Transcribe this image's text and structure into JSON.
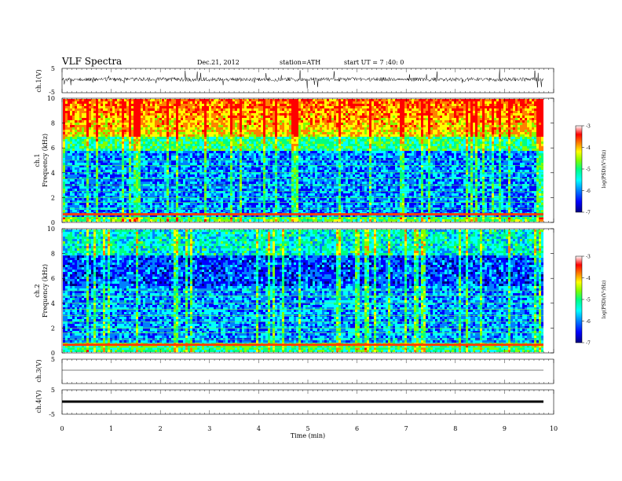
{
  "header": {
    "title": "VLF  Spectra",
    "date": "Dec.21, 2012",
    "station": "station=ATH",
    "start": "start  UT  =   7  :40: 0"
  },
  "colors": {
    "spectrum_scale": [
      "#000080",
      "#0000ff",
      "#0080ff",
      "#00ffff",
      "#00ff80",
      "#80ff00",
      "#ffff00",
      "#ff8000",
      "#ff0000",
      "#ffffff"
    ]
  },
  "chart_data": [
    {
      "type": "line",
      "panel": "ch1-waveform",
      "ylabel": "ch.1(V)",
      "ylim": [
        -5,
        5
      ],
      "yticks": [
        "5",
        "-5"
      ],
      "xlim": [
        0,
        10
      ],
      "series": [
        {
          "x": [
            0,
            9.8
          ],
          "y": [
            0,
            0
          ]
        }
      ]
    },
    {
      "type": "heatmap",
      "panel": "ch1-spectrogram",
      "ylabel": "ch.1\nFrequency (kHz)",
      "ylim": [
        0,
        10
      ],
      "yticks": [
        "0",
        "2",
        "4",
        "6",
        "8",
        "10"
      ],
      "xlim": [
        0,
        10
      ],
      "colorbar": {
        "label": "log(PSD)(V²/Hz)",
        "range": [
          -7,
          -3
        ],
        "ticks": [
          "-3",
          "-4",
          "-5",
          "-6",
          "-7"
        ]
      }
    },
    {
      "type": "heatmap",
      "panel": "ch2-spectrogram",
      "ylabel": "ch.2\nFrequency (kHz)",
      "ylim": [
        0,
        10
      ],
      "yticks": [
        "0",
        "2",
        "4",
        "6",
        "8",
        "10"
      ],
      "xlim": [
        0,
        10
      ],
      "colorbar": {
        "label": "log(PSD)(V²/Hz)",
        "range": [
          -7,
          -3
        ],
        "ticks": [
          "-3",
          "-4",
          "-5",
          "-6",
          "-7"
        ]
      }
    },
    {
      "type": "line",
      "panel": "ch3-waveform",
      "ylabel": "ch.3(V)",
      "ylim": [
        -5,
        5
      ],
      "yticks": [
        "5"
      ],
      "xlim": [
        0,
        10
      ],
      "series": [
        {
          "x": [
            0,
            9.8
          ],
          "y": [
            0,
            0
          ]
        }
      ]
    },
    {
      "type": "line",
      "panel": "ch4-waveform",
      "ylabel": "ch.4(V)",
      "ylim": [
        -5,
        5
      ],
      "yticks": [
        "5",
        "-5"
      ],
      "xlim": [
        0,
        10
      ],
      "series": [
        {
          "x": [
            0,
            9.8
          ],
          "y": [
            0,
            0
          ]
        }
      ]
    }
  ],
  "xaxis": {
    "label": "Time  (min)",
    "ticks": [
      "0",
      "1",
      "2",
      "3",
      "4",
      "5",
      "6",
      "7",
      "8",
      "9",
      "10"
    ]
  }
}
